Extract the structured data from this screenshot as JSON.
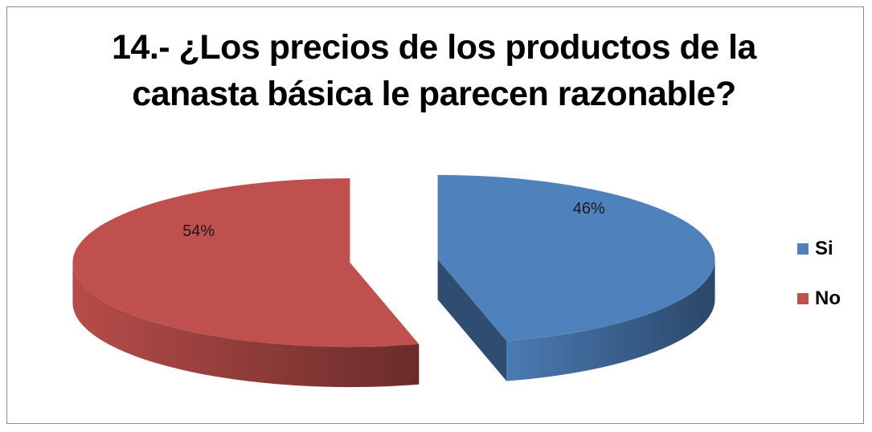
{
  "chart_data": {
    "type": "pie",
    "title": "14.- ¿Los precios de los productos de la canasta básica le parecen razonable?",
    "title_lines": [
      "14.- ¿Los precios de los productos de la",
      "canasta básica le parecen razonable?"
    ],
    "categories": [
      "Si",
      "No"
    ],
    "values": [
      46,
      54
    ],
    "data_labels": [
      "46%",
      "54%"
    ],
    "colors": [
      "#4F81BD",
      "#C0504D"
    ],
    "style": "3d-exploded",
    "legend": "right"
  }
}
